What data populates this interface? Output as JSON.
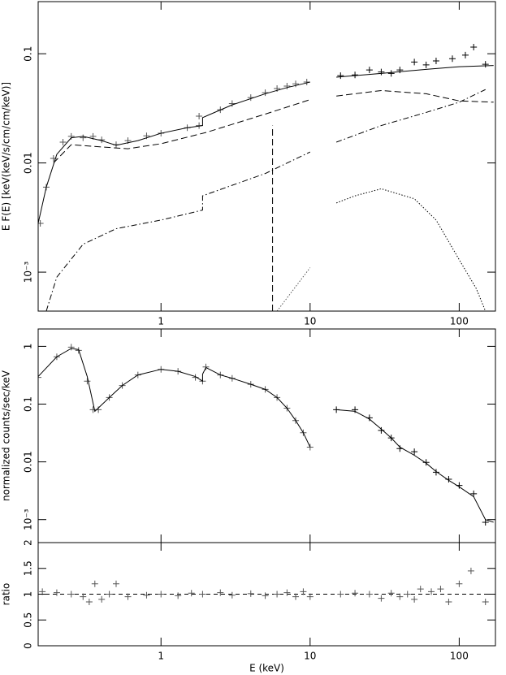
{
  "chart_data": [
    {
      "type": "line",
      "xscale": "log",
      "yscale": "log",
      "ylabel": "E F(E)  [keV(keV/s/cm/cm/keV)]",
      "xlim": [
        0.15,
        175
      ],
      "ylim": [
        0.00044,
        0.3
      ],
      "xticks": [
        1,
        10,
        100
      ],
      "yticks": [
        {
          "value": 0.001,
          "label": "10⁻³"
        },
        0.01,
        0.1
      ],
      "series": [
        {
          "color": "#555555",
          "style": "points",
          "x": [
            0.155,
            0.17,
            0.19,
            0.22,
            0.25,
            0.3,
            0.35,
            0.4,
            0.5,
            0.6,
            0.8,
            1.0,
            1.5,
            1.8
          ],
          "values": [
            0.0028,
            0.006,
            0.011,
            0.0155,
            0.0175,
            0.017,
            0.0175,
            0.0163,
            0.0147,
            0.016,
            0.0177,
            0.0187,
            0.021,
            0.022
          ]
        },
        {
          "color": "#555555",
          "style": "points",
          "x": [
            1.8,
            2.5,
            3,
            4,
            5,
            6,
            7,
            8,
            9.5
          ],
          "values": [
            0.0268,
            0.0307,
            0.035,
            0.0397,
            0.044,
            0.048,
            0.0505,
            0.053,
            0.055
          ]
        },
        {
          "color": "#000000",
          "style": "points",
          "x": [
            16,
            20,
            25,
            30,
            35,
            40,
            50,
            60,
            70,
            90,
            110,
            125,
            150
          ],
          "values": [
            0.063,
            0.064,
            0.071,
            0.068,
            0.066,
            0.071,
            0.084,
            0.079,
            0.086,
            0.09,
            0.097,
            0.115,
            0.08
          ]
        },
        {
          "color": "#000000",
          "style": "solid",
          "x": [
            0.15,
            0.17,
            0.2,
            0.25,
            0.3,
            0.4,
            0.5,
            0.7,
            1,
            1.5,
            1.9,
            1.9,
            3,
            5,
            7,
            10,
            12,
            15,
            30,
            60,
            100,
            170
          ],
          "values": [
            0.0028,
            0.006,
            0.012,
            0.017,
            0.0175,
            0.016,
            0.0145,
            0.016,
            0.0187,
            0.021,
            0.022,
            0.026,
            0.034,
            0.043,
            0.049,
            0.055,
            null,
            0.061,
            0.066,
            0.072,
            0.076,
            0.078
          ]
        },
        {
          "color": "#000000",
          "style": "dashed",
          "x": [
            0.19,
            0.25,
            0.4,
            0.6,
            1,
            2,
            5,
            10,
            12,
            15,
            30,
            60,
            100,
            170
          ],
          "values": [
            0.01,
            0.0147,
            0.014,
            0.0135,
            0.015,
            0.019,
            0.028,
            0.038,
            null,
            0.041,
            0.046,
            0.043,
            0.037,
            0.036
          ]
        },
        {
          "color": "#000000",
          "style": "dashdot",
          "x": [
            0.17,
            0.2,
            0.3,
            0.5,
            1,
            1.9,
            1.9,
            5,
            10,
            12,
            15,
            30,
            60,
            100,
            150
          ],
          "values": [
            0.00044,
            0.0009,
            0.0018,
            0.0025,
            0.003,
            0.0037,
            0.005,
            0.008,
            0.0126,
            null,
            0.0155,
            0.022,
            0.029,
            0.036,
            0.047
          ]
        },
        {
          "color": "#000000",
          "style": "dotted",
          "x": [
            15,
            20,
            30,
            50,
            70,
            100,
            130,
            150
          ],
          "values": [
            0.0043,
            0.005,
            0.0058,
            0.0047,
            0.003,
            0.0013,
            0.00071,
            0.00044
          ]
        },
        {
          "color": "#000000",
          "style": "dashed",
          "x": [
            5.6,
            5.6
          ],
          "values": [
            0.00044,
            0.022
          ]
        },
        {
          "color": "#555555",
          "style": "dotted",
          "x": [
            6,
            10
          ],
          "values": [
            0.00044,
            0.0011
          ]
        }
      ]
    },
    {
      "type": "line",
      "xscale": "log",
      "yscale": "log",
      "ylabel": "normalized counts/sec/keV",
      "xlim": [
        0.15,
        175
      ],
      "ylim": [
        0.0004,
        2
      ],
      "xticks": [
        1,
        10,
        100
      ],
      "xticklabels": false,
      "yticks": [
        {
          "value": 0.001,
          "label": "10⁻³"
        },
        0.01,
        0.1,
        1
      ],
      "series": [
        {
          "color": "#555555",
          "style": "points",
          "x": [
            0.15,
            0.2,
            0.25,
            0.28,
            0.32,
            0.35,
            0.38,
            0.45,
            0.55,
            0.7,
            1,
            1.3,
            1.7,
            1.9
          ],
          "values": [
            0.29,
            0.66,
            0.97,
            0.85,
            0.25,
            0.08,
            0.08,
            0.13,
            0.21,
            0.32,
            0.4,
            0.37,
            0.29,
            0.25
          ]
        },
        {
          "color": "#555555",
          "style": "points",
          "x": [
            2,
            2.5,
            3,
            4,
            5,
            6,
            7,
            8,
            9,
            10
          ],
          "values": [
            0.44,
            0.32,
            0.28,
            0.22,
            0.18,
            0.13,
            0.085,
            0.052,
            0.032,
            0.018
          ]
        },
        {
          "color": "#000000",
          "style": "points",
          "x": [
            15,
            20,
            25,
            30,
            35,
            40,
            50,
            60,
            70,
            85,
            100,
            125,
            150
          ],
          "values": [
            0.08,
            0.08,
            0.058,
            0.035,
            0.026,
            0.017,
            0.015,
            0.0098,
            0.0066,
            0.005,
            0.0039,
            0.0028,
            0.0009
          ]
        },
        {
          "color": "#000000",
          "style": "solid",
          "x": [
            0.15,
            0.2,
            0.25,
            0.28,
            0.32,
            0.36,
            0.45,
            0.55,
            0.7,
            1,
            1.3,
            1.7,
            1.9,
            1.9,
            2,
            2.5,
            3,
            4,
            5,
            6,
            7,
            8,
            9,
            10,
            12,
            15,
            20,
            25,
            30,
            35,
            40,
            50,
            60,
            70,
            85,
            100,
            125,
            150,
            170
          ],
          "values": [
            0.3,
            0.66,
            0.92,
            0.88,
            0.3,
            0.075,
            0.13,
            0.21,
            0.32,
            0.4,
            0.37,
            0.3,
            0.25,
            0.33,
            0.43,
            0.32,
            0.28,
            0.22,
            0.18,
            0.13,
            0.085,
            0.052,
            0.032,
            0.018,
            null,
            0.08,
            0.075,
            0.055,
            0.037,
            0.026,
            0.018,
            0.013,
            0.0095,
            0.0068,
            0.0048,
            0.0037,
            0.0025,
            0.001,
            0.0009
          ]
        }
      ]
    },
    {
      "type": "line",
      "xscale": "log",
      "yscale": "linear",
      "ylabel": "ratio",
      "xlabel": "E (keV)",
      "xlim": [
        0.15,
        175
      ],
      "ylim": [
        0,
        2
      ],
      "xticks": [
        1,
        10,
        100
      ],
      "yticks": [
        0,
        0.5,
        1,
        1.5,
        2
      ],
      "hline": 1,
      "series": [
        {
          "color": "#555555",
          "style": "points",
          "x": [
            0.16,
            0.2,
            0.25,
            0.3,
            0.33,
            0.36,
            0.4,
            0.45,
            0.5,
            0.6,
            0.8,
            1,
            1.3,
            1.6,
            1.9,
            2.5,
            3,
            4,
            5,
            6,
            7,
            8,
            9,
            10,
            16,
            20,
            25,
            30,
            35,
            40,
            45,
            50,
            55,
            65,
            75,
            85,
            100,
            120,
            150
          ],
          "values": [
            1.05,
            1.03,
            1.0,
            0.95,
            0.85,
            1.2,
            0.9,
            1.0,
            1.2,
            0.95,
            0.98,
            1.0,
            0.97,
            1.02,
            1.0,
            1.03,
            0.98,
            1.01,
            0.97,
            1.0,
            1.03,
            0.95,
            1.05,
            0.95,
            1.0,
            1.02,
            1.0,
            0.92,
            1.02,
            0.95,
            1.0,
            0.9,
            1.1,
            1.05,
            1.1,
            0.85,
            1.2,
            1.45,
            0.85
          ]
        }
      ]
    }
  ]
}
